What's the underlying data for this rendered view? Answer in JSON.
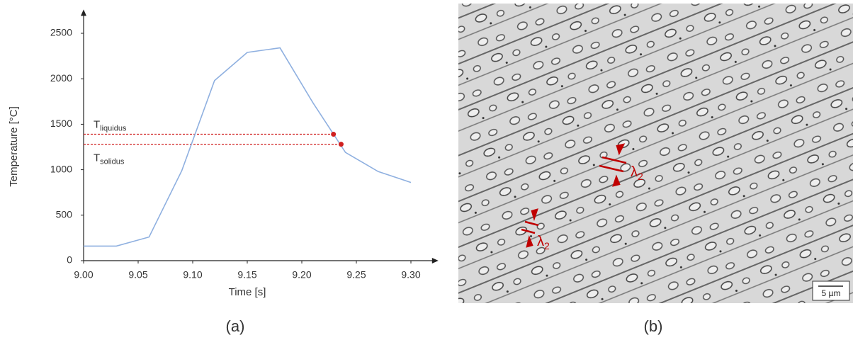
{
  "chart_data": {
    "type": "line",
    "xlabel": "Time [s]",
    "ylabel": "Temperature [°C]",
    "color": "#8fb0e0",
    "x": [
      9.0,
      9.03,
      9.06,
      9.09,
      9.12,
      9.15,
      9.18,
      9.21,
      9.24,
      9.27,
      9.3
    ],
    "values": [
      160,
      160,
      260,
      990,
      1980,
      2290,
      2340,
      1740,
      1190,
      980,
      860
    ],
    "xlim": [
      9.0,
      9.32
    ],
    "ylim": [
      0,
      2700
    ],
    "xticks": [
      {
        "value": 9.0,
        "label": "9.00"
      },
      9.05,
      {
        "value": 9.1,
        "label": "9.10"
      },
      9.15,
      {
        "value": 9.2,
        "label": "9.20"
      },
      9.25,
      {
        "value": 9.3,
        "label": "9.30"
      }
    ],
    "yticks": [
      0,
      500,
      1000,
      1500,
      2000,
      2500
    ],
    "hlines": [
      {
        "value": 1390,
        "label": "T",
        "sub": "liquidus",
        "color": "#d02020"
      },
      {
        "value": 1280,
        "label": "T",
        "sub": "solidus",
        "color": "#d02020"
      }
    ],
    "markers": [
      {
        "x": 9.229,
        "y": 1390
      },
      {
        "x": 9.236,
        "y": 1280
      }
    ]
  },
  "micrograph": {
    "annotations": [
      {
        "text": "λ",
        "sub": "2"
      },
      {
        "text": "λ",
        "sub": "2"
      }
    ],
    "scale_bar": "5 µm"
  },
  "panels": [
    "(a)",
    "(b)"
  ]
}
